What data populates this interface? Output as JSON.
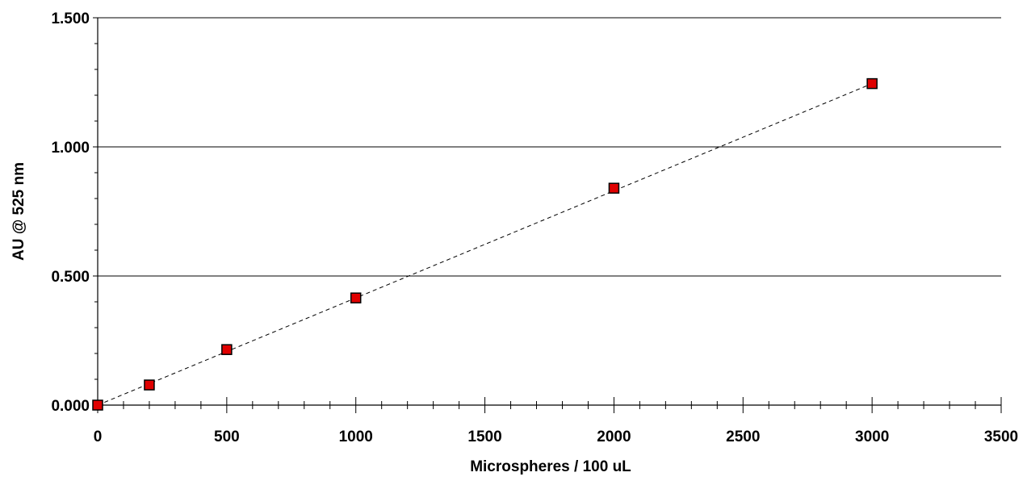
{
  "chart_data": {
    "type": "scatter",
    "title": "",
    "xlabel": "Microspheres / 100 uL",
    "ylabel": "AU @ 525 nm",
    "xlim": [
      0,
      3500
    ],
    "ylim": [
      0,
      1.5
    ],
    "x_ticks": [
      "0",
      "500",
      "1000",
      "1500",
      "2000",
      "2500",
      "3000",
      "3500"
    ],
    "y_ticks": [
      "0.000",
      "0.500",
      "1.000",
      "1.500"
    ],
    "grid": "horizontal major gridlines",
    "legend": "none",
    "series": [
      {
        "marker": "square",
        "color": "#e00000",
        "points": [
          {
            "x": 0,
            "y": 0.0
          },
          {
            "x": 200,
            "y": 0.078
          },
          {
            "x": 500,
            "y": 0.215
          },
          {
            "x": 1000,
            "y": 0.415
          },
          {
            "x": 2000,
            "y": 0.84
          },
          {
            "x": 3000,
            "y": 1.245
          }
        ]
      }
    ],
    "trendline": {
      "style": "dashed",
      "color": "#000000",
      "from": {
        "x": 0,
        "y": 0.0
      },
      "to": {
        "x": 3000,
        "y": 1.245
      }
    }
  }
}
